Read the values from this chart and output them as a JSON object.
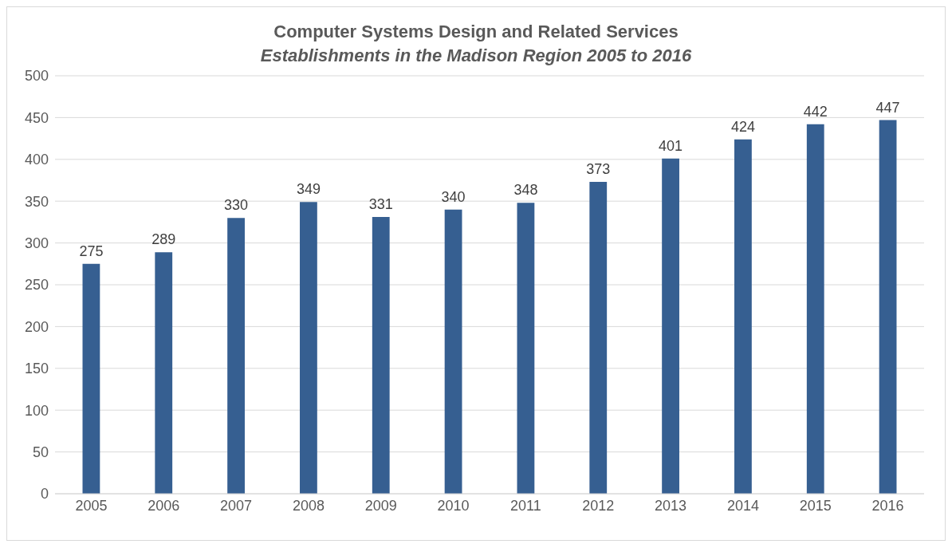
{
  "chart_data": {
    "type": "bar",
    "title": "Computer Systems Design and Related Services",
    "subtitle": "Establishments in the Madison Region 2005 to 2016",
    "categories": [
      "2005",
      "2006",
      "2007",
      "2008",
      "2009",
      "2010",
      "2011",
      "2012",
      "2013",
      "2014",
      "2015",
      "2016"
    ],
    "values": [
      275,
      289,
      330,
      349,
      331,
      340,
      348,
      373,
      401,
      424,
      442,
      447
    ],
    "color": "#365f91",
    "ylim": [
      0,
      500
    ],
    "yticks": [
      0,
      50,
      100,
      150,
      200,
      250,
      300,
      350,
      400,
      450,
      500
    ],
    "grid": "y",
    "data_labels": true
  }
}
